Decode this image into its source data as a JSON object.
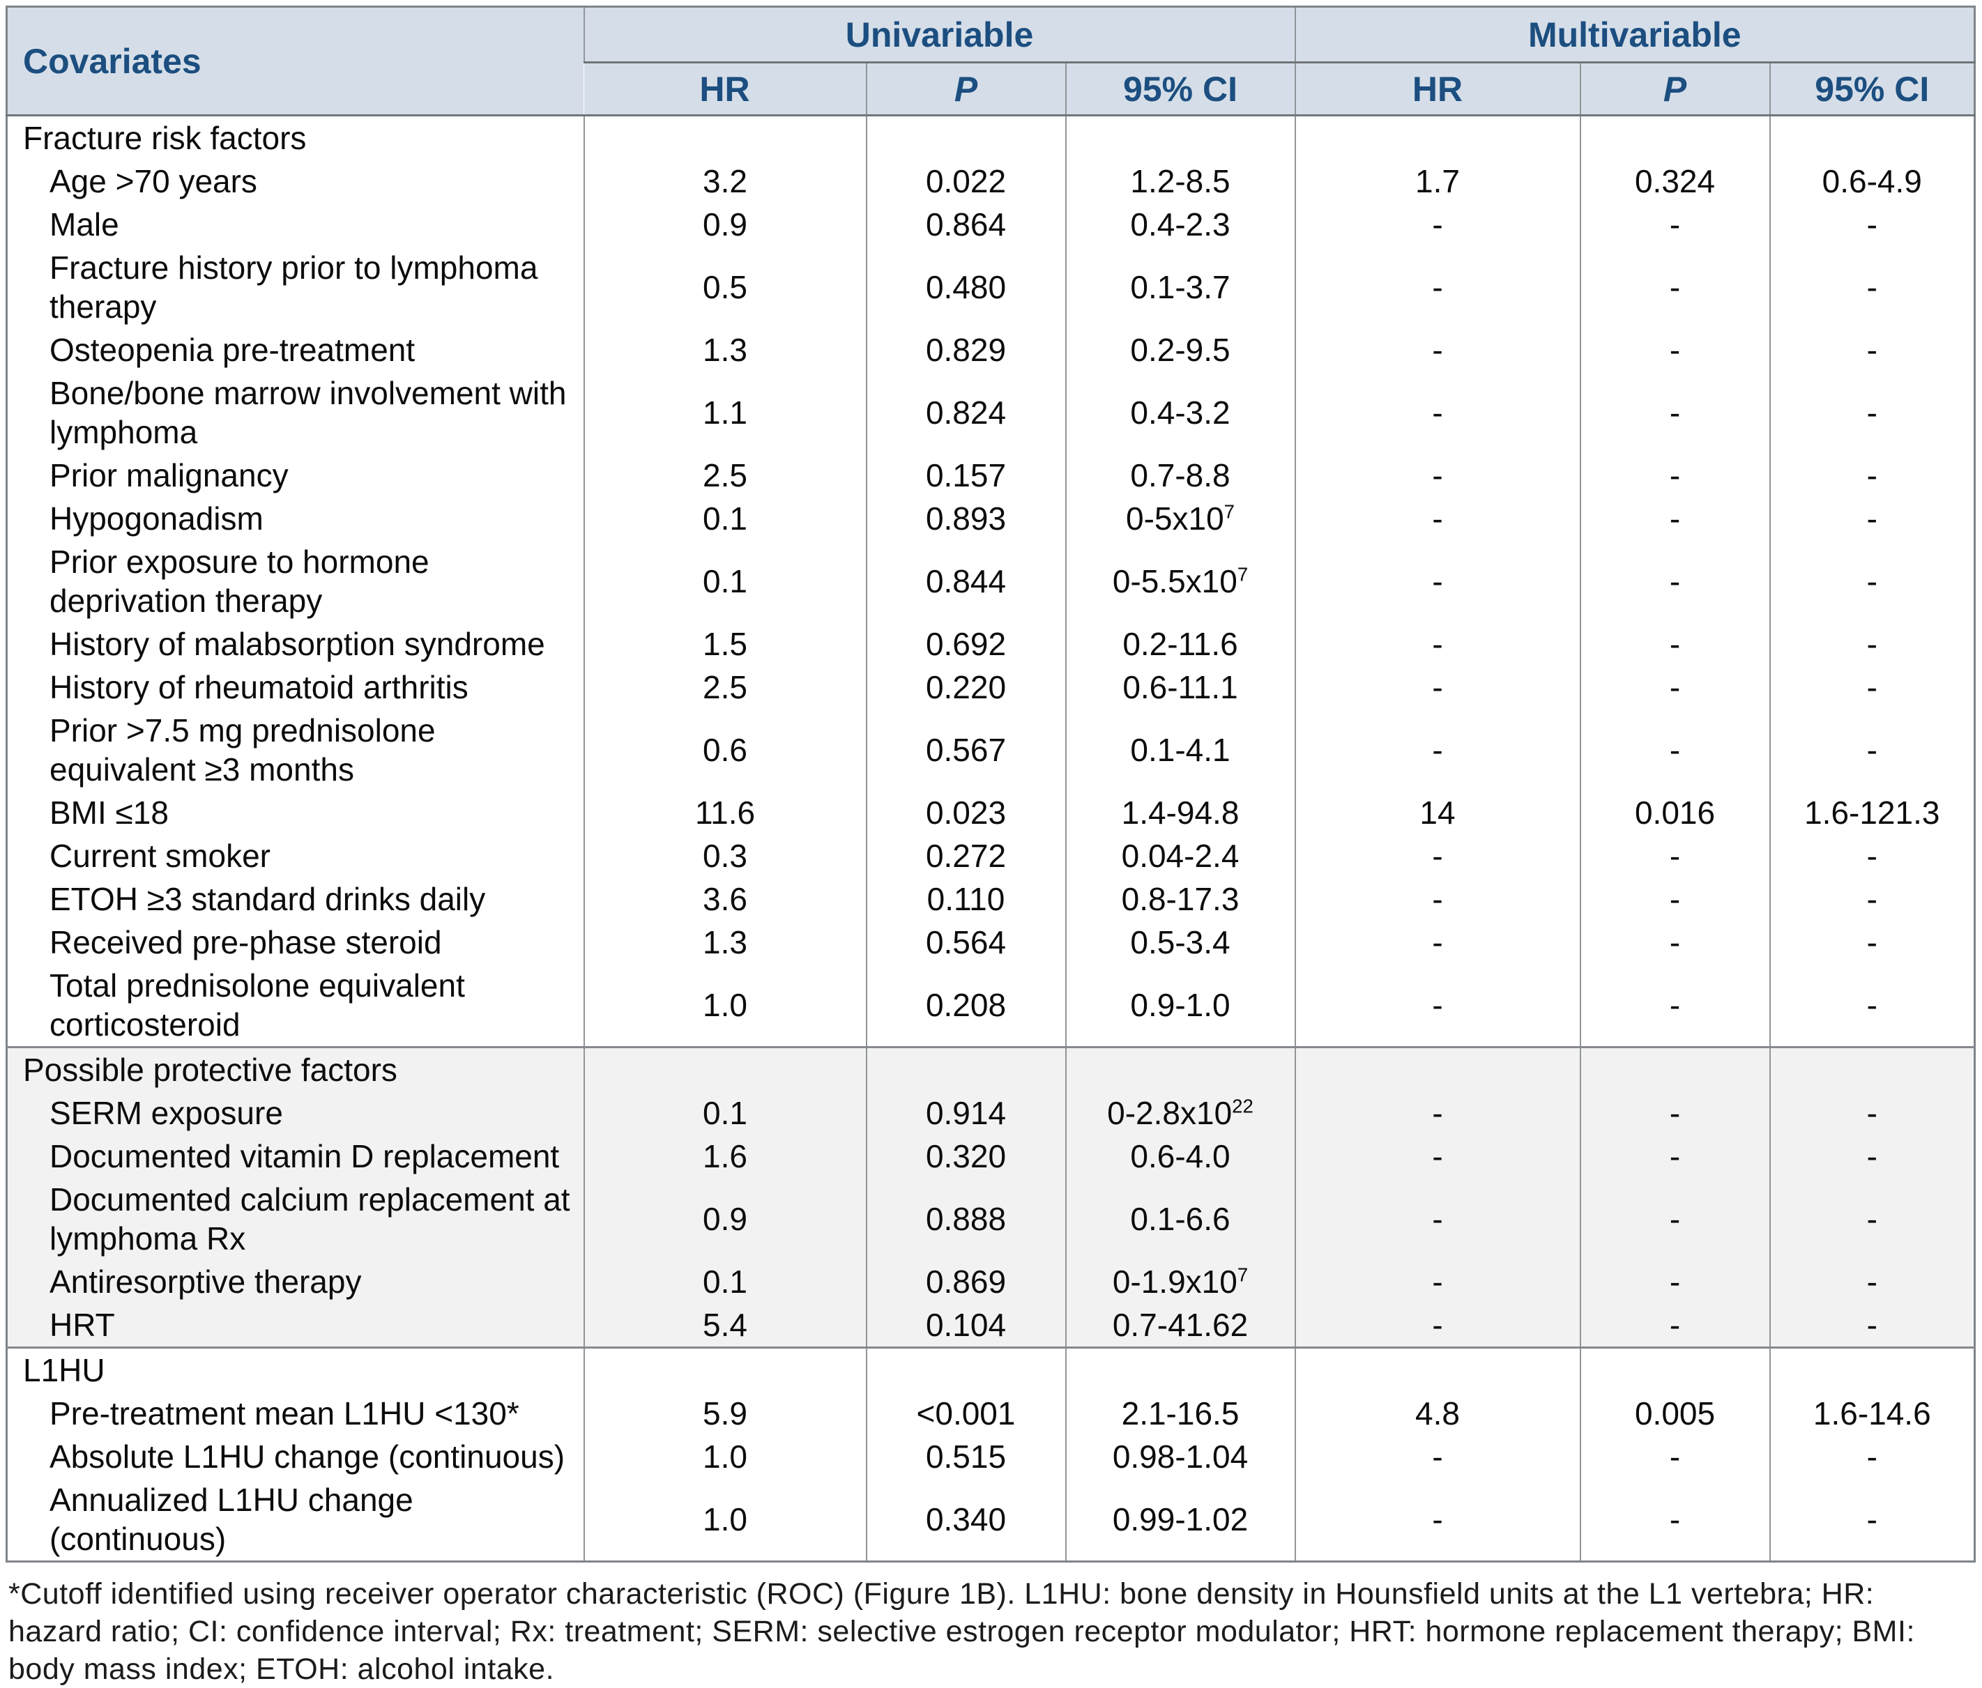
{
  "colors": {
    "header_bg": "#d5dee8",
    "header_text": "#1c4e80",
    "shaded_bg": "#f2f2f2"
  },
  "table": {
    "covariates_header": "Covariates",
    "groups": [
      {
        "label": "Univariable"
      },
      {
        "label": "Multivariable"
      }
    ],
    "subheaders": [
      "HR",
      "P",
      "95% CI",
      "HR",
      "P",
      "95% CI"
    ],
    "sections": [
      {
        "label": "Fracture risk factors",
        "shaded": false,
        "rows": [
          {
            "label": "Age >70 years",
            "uni": {
              "hr": "3.2",
              "p": "0.022",
              "ci": "1.2-8.5",
              "ci_sup": ""
            },
            "multi": {
              "hr": "1.7",
              "p": "0.324",
              "ci": "0.6-4.9",
              "ci_sup": ""
            }
          },
          {
            "label": "Male",
            "uni": {
              "hr": "0.9",
              "p": "0.864",
              "ci": "0.4-2.3",
              "ci_sup": ""
            },
            "multi": {
              "hr": "-",
              "p": "-",
              "ci": "-",
              "ci_sup": ""
            }
          },
          {
            "label": "Fracture history prior to lymphoma\ntherapy",
            "uni": {
              "hr": "0.5",
              "p": "0.480",
              "ci": "0.1-3.7",
              "ci_sup": ""
            },
            "multi": {
              "hr": "-",
              "p": "-",
              "ci": "-",
              "ci_sup": ""
            }
          },
          {
            "label": "Osteopenia pre-treatment",
            "uni": {
              "hr": "1.3",
              "p": "0.829",
              "ci": "0.2-9.5",
              "ci_sup": ""
            },
            "multi": {
              "hr": "-",
              "p": "-",
              "ci": "-",
              "ci_sup": ""
            }
          },
          {
            "label": "Bone/bone marrow involvement with\nlymphoma",
            "uni": {
              "hr": "1.1",
              "p": "0.824",
              "ci": "0.4-3.2",
              "ci_sup": ""
            },
            "multi": {
              "hr": "-",
              "p": "-",
              "ci": "-",
              "ci_sup": ""
            }
          },
          {
            "label": "Prior malignancy",
            "uni": {
              "hr": "2.5",
              "p": "0.157",
              "ci": "0.7-8.8",
              "ci_sup": ""
            },
            "multi": {
              "hr": "-",
              "p": "-",
              "ci": "-",
              "ci_sup": ""
            }
          },
          {
            "label": "Hypogonadism",
            "uni": {
              "hr": "0.1",
              "p": "0.893",
              "ci": "0-5x10",
              "ci_sup": "7"
            },
            "multi": {
              "hr": "-",
              "p": "-",
              "ci": "-",
              "ci_sup": ""
            }
          },
          {
            "label": "Prior exposure to hormone\ndeprivation therapy",
            "uni": {
              "hr": "0.1",
              "p": "0.844",
              "ci": "0-5.5x10",
              "ci_sup": "7"
            },
            "multi": {
              "hr": "-",
              "p": "-",
              "ci": "-",
              "ci_sup": ""
            }
          },
          {
            "label": "History of malabsorption syndrome",
            "uni": {
              "hr": "1.5",
              "p": "0.692",
              "ci": "0.2-11.6",
              "ci_sup": ""
            },
            "multi": {
              "hr": "-",
              "p": "-",
              "ci": "-",
              "ci_sup": ""
            }
          },
          {
            "label": "History of rheumatoid arthritis",
            "uni": {
              "hr": "2.5",
              "p": "0.220",
              "ci": "0.6-11.1",
              "ci_sup": ""
            },
            "multi": {
              "hr": "-",
              "p": "-",
              "ci": "-",
              "ci_sup": ""
            }
          },
          {
            "label": "Prior  >7.5 mg prednisolone\nequivalent ≥3 months",
            "uni": {
              "hr": "0.6",
              "p": "0.567",
              "ci": "0.1-4.1",
              "ci_sup": ""
            },
            "multi": {
              "hr": "-",
              "p": "-",
              "ci": "-",
              "ci_sup": ""
            }
          },
          {
            "label": "BMI ≤18",
            "uni": {
              "hr": "11.6",
              "p": "0.023",
              "ci": "1.4-94.8",
              "ci_sup": ""
            },
            "multi": {
              "hr": "14",
              "p": "0.016",
              "ci": "1.6-121.3",
              "ci_sup": ""
            }
          },
          {
            "label": "Current smoker",
            "uni": {
              "hr": "0.3",
              "p": "0.272",
              "ci": "0.04-2.4",
              "ci_sup": ""
            },
            "multi": {
              "hr": "-",
              "p": "-",
              "ci": "-",
              "ci_sup": ""
            }
          },
          {
            "label": "ETOH ≥3 standard drinks daily",
            "uni": {
              "hr": "3.6",
              "p": "0.110",
              "ci": "0.8-17.3",
              "ci_sup": ""
            },
            "multi": {
              "hr": "-",
              "p": "-",
              "ci": "-",
              "ci_sup": ""
            }
          },
          {
            "label": "Received pre-phase steroid",
            "uni": {
              "hr": "1.3",
              "p": "0.564",
              "ci": "0.5-3.4",
              "ci_sup": ""
            },
            "multi": {
              "hr": "-",
              "p": "-",
              "ci": "-",
              "ci_sup": ""
            }
          },
          {
            "label": "Total prednisolone equivalent\ncorticosteroid",
            "uni": {
              "hr": "1.0",
              "p": "0.208",
              "ci": "0.9-1.0",
              "ci_sup": ""
            },
            "multi": {
              "hr": "-",
              "p": "-",
              "ci": "-",
              "ci_sup": ""
            }
          }
        ]
      },
      {
        "label": "Possible protective factors",
        "shaded": true,
        "rows": [
          {
            "label": "SERM exposure",
            "uni": {
              "hr": "0.1",
              "p": "0.914",
              "ci": "0-2.8x10",
              "ci_sup": "22"
            },
            "multi": {
              "hr": "-",
              "p": "-",
              "ci": "-",
              "ci_sup": ""
            }
          },
          {
            "label": "Documented vitamin D replacement",
            "uni": {
              "hr": "1.6",
              "p": "0.320",
              "ci": "0.6-4.0",
              "ci_sup": ""
            },
            "multi": {
              "hr": "-",
              "p": "-",
              "ci": "-",
              "ci_sup": ""
            }
          },
          {
            "label": "Documented calcium replacement at\nlymphoma Rx",
            "uni": {
              "hr": "0.9",
              "p": "0.888",
              "ci": "0.1-6.6",
              "ci_sup": ""
            },
            "multi": {
              "hr": "-",
              "p": "-",
              "ci": "-",
              "ci_sup": ""
            }
          },
          {
            "label": "Antiresorptive therapy",
            "uni": {
              "hr": "0.1",
              "p": "0.869",
              "ci": "0-1.9x10",
              "ci_sup": "7"
            },
            "multi": {
              "hr": "-",
              "p": "-",
              "ci": "-",
              "ci_sup": ""
            }
          },
          {
            "label": "HRT",
            "uni": {
              "hr": "5.4",
              "p": "0.104",
              "ci": "0.7-41.62",
              "ci_sup": ""
            },
            "multi": {
              "hr": "-",
              "p": "-",
              "ci": "-",
              "ci_sup": ""
            }
          }
        ]
      },
      {
        "label": "L1HU",
        "shaded": false,
        "rows": [
          {
            "label": "Pre-treatment mean L1HU <130*",
            "uni": {
              "hr": "5.9",
              "p": "<0.001",
              "ci": "2.1-16.5",
              "ci_sup": ""
            },
            "multi": {
              "hr": "4.8",
              "p": "0.005",
              "ci": "1.6-14.6",
              "ci_sup": ""
            }
          },
          {
            "label": "Absolute L1HU change (continuous)",
            "uni": {
              "hr": "1.0",
              "p": "0.515",
              "ci": "0.98-1.04",
              "ci_sup": ""
            },
            "multi": {
              "hr": "-",
              "p": "-",
              "ci": "-",
              "ci_sup": ""
            }
          },
          {
            "label": "Annualized L1HU change\n(continuous)",
            "uni": {
              "hr": "1.0",
              "p": "0.340",
              "ci": "0.99-1.02",
              "ci_sup": ""
            },
            "multi": {
              "hr": "-",
              "p": "-",
              "ci": "-",
              "ci_sup": ""
            }
          }
        ]
      }
    ],
    "footnote": "*Cutoff identified using receiver operator characteristic (ROC) (Figure 1B). L1HU: bone density in Hounsfield units at the L1 vertebra; HR: hazard ratio; CI: confidence interval; Rx: treatment; SERM: selective estrogen receptor modulator; HRT: hormone replacement therapy; BMI: body mass index; ETOH: alcohol intake."
  }
}
